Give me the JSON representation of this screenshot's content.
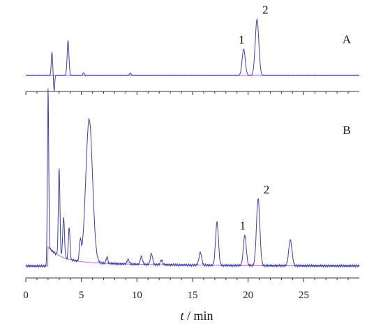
{
  "chart_data": {
    "type": "line",
    "xlabel_var": "t",
    "xlabel_unit": " / min",
    "xlim": [
      0,
      30
    ],
    "xticks": [
      0,
      5,
      10,
      15,
      20,
      25
    ],
    "colors": {
      "signal": "#3a3fb0",
      "baseline": "#d050d0",
      "axis": "#333333"
    },
    "panels": [
      {
        "label": "A",
        "baseline_level": 0,
        "peaks": [
          {
            "t": 2.35,
            "h": 0.42,
            "w": 0.06
          },
          {
            "t": 2.55,
            "h": -0.28,
            "w": 0.05
          },
          {
            "t": 3.8,
            "h": 0.62,
            "w": 0.08
          },
          {
            "t": 5.2,
            "h": 0.05,
            "w": 0.06
          },
          {
            "t": 9.4,
            "h": 0.04,
            "w": 0.08
          },
          {
            "t": 19.6,
            "h": 0.47,
            "w": 0.14
          },
          {
            "t": 20.8,
            "h": 1.0,
            "w": 0.16
          }
        ],
        "peak_labels": [
          {
            "text": "1",
            "t": 19.6
          },
          {
            "text": "2",
            "t": 20.8
          }
        ]
      },
      {
        "label": "B",
        "baseline_level": 0,
        "peaks": [
          {
            "t": 2.0,
            "h": 1.0,
            "w": 0.06
          },
          {
            "t": 3.0,
            "h": 0.55,
            "w": 0.07
          },
          {
            "t": 3.4,
            "h": 0.25,
            "w": 0.08
          },
          {
            "t": 3.9,
            "h": 0.2,
            "w": 0.07
          },
          {
            "t": 4.9,
            "h": 0.12,
            "w": 0.08
          },
          {
            "t": 5.7,
            "h": 0.9,
            "w": 0.3
          },
          {
            "t": 7.3,
            "h": 0.04,
            "w": 0.08
          },
          {
            "t": 9.2,
            "h": 0.03,
            "w": 0.1
          },
          {
            "t": 10.4,
            "h": 0.05,
            "w": 0.1
          },
          {
            "t": 11.3,
            "h": 0.07,
            "w": 0.1
          },
          {
            "t": 12.2,
            "h": 0.03,
            "w": 0.1
          },
          {
            "t": 15.7,
            "h": 0.08,
            "w": 0.12
          },
          {
            "t": 17.2,
            "h": 0.27,
            "w": 0.13
          },
          {
            "t": 19.7,
            "h": 0.19,
            "w": 0.13
          },
          {
            "t": 20.9,
            "h": 0.42,
            "w": 0.15
          },
          {
            "t": 23.8,
            "h": 0.16,
            "w": 0.15
          }
        ],
        "peak_labels": [
          {
            "text": "1",
            "t": 19.7
          },
          {
            "text": "2",
            "t": 20.9
          }
        ]
      }
    ]
  }
}
